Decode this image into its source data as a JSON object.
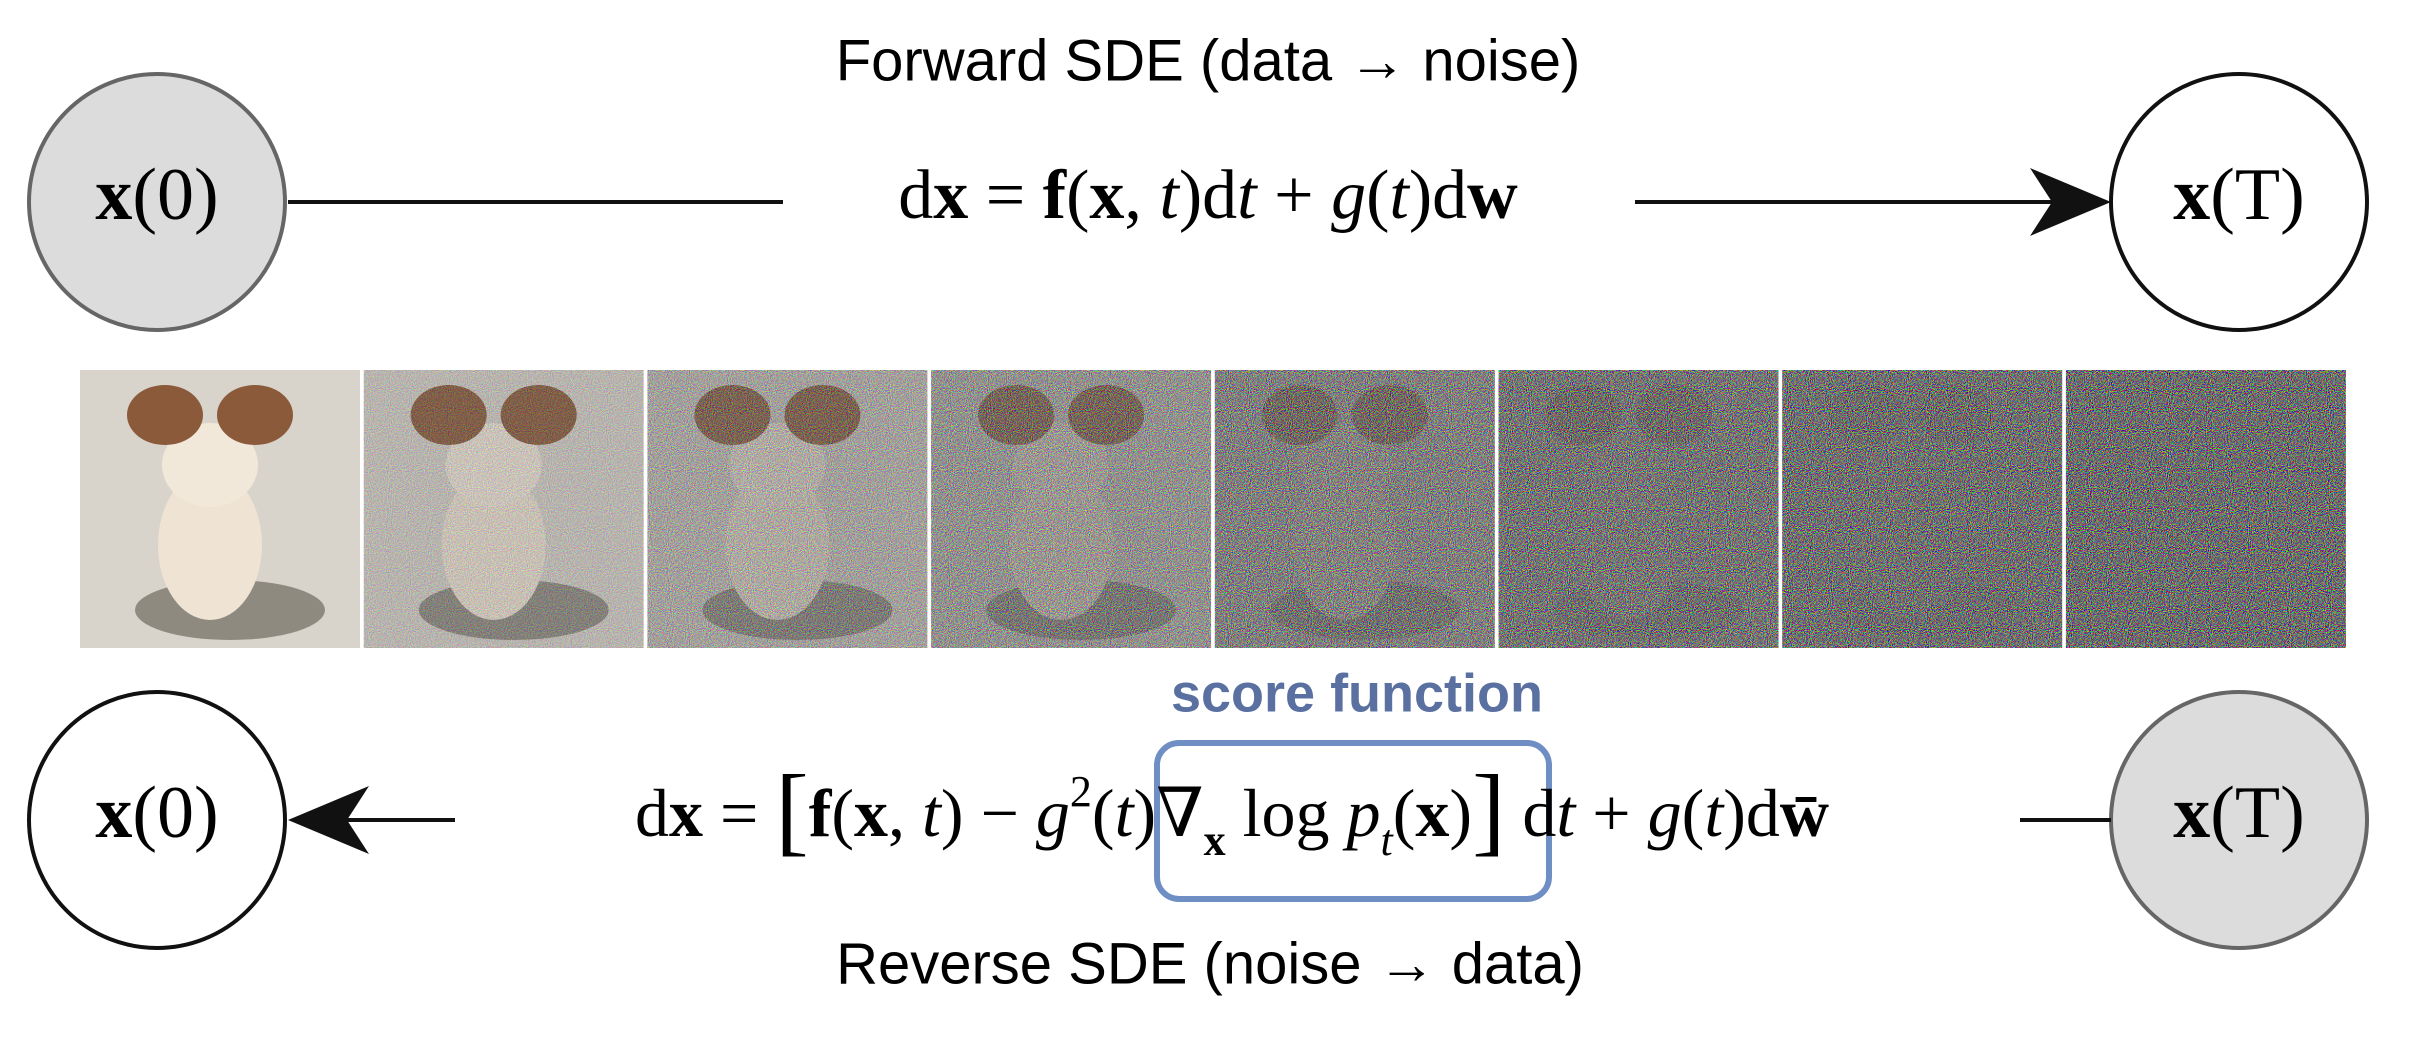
{
  "forward": {
    "title": "Forward SDE (data → noise)",
    "equation": [
      "d",
      "x",
      " = ",
      "f",
      "(",
      "x",
      ", ",
      "t",
      ")d",
      "t",
      " + ",
      "g",
      "(",
      "t",
      ")d",
      "w"
    ]
  },
  "reverse": {
    "title": "Reverse SDE (noise → data)",
    "score_label": "score function",
    "equation": [
      "d",
      "x",
      " = ",
      "[",
      "f",
      "(",
      "x",
      ", ",
      "t",
      ")",
      " − ",
      "g",
      "2",
      "(",
      "t",
      ")",
      "∇",
      "x",
      " log ",
      "p",
      "t",
      "(",
      "x",
      ")",
      "]",
      " d",
      "t",
      " + ",
      "g",
      "(",
      "t",
      ")d",
      "w̄"
    ]
  },
  "nodes": [
    {
      "symbol": "x",
      "argument": "(0)"
    },
    {
      "symbol": "x",
      "argument": "(T)"
    },
    {
      "symbol": "x",
      "argument": "(0)"
    },
    {
      "symbol": "x",
      "argument": "(T)"
    }
  ]
}
